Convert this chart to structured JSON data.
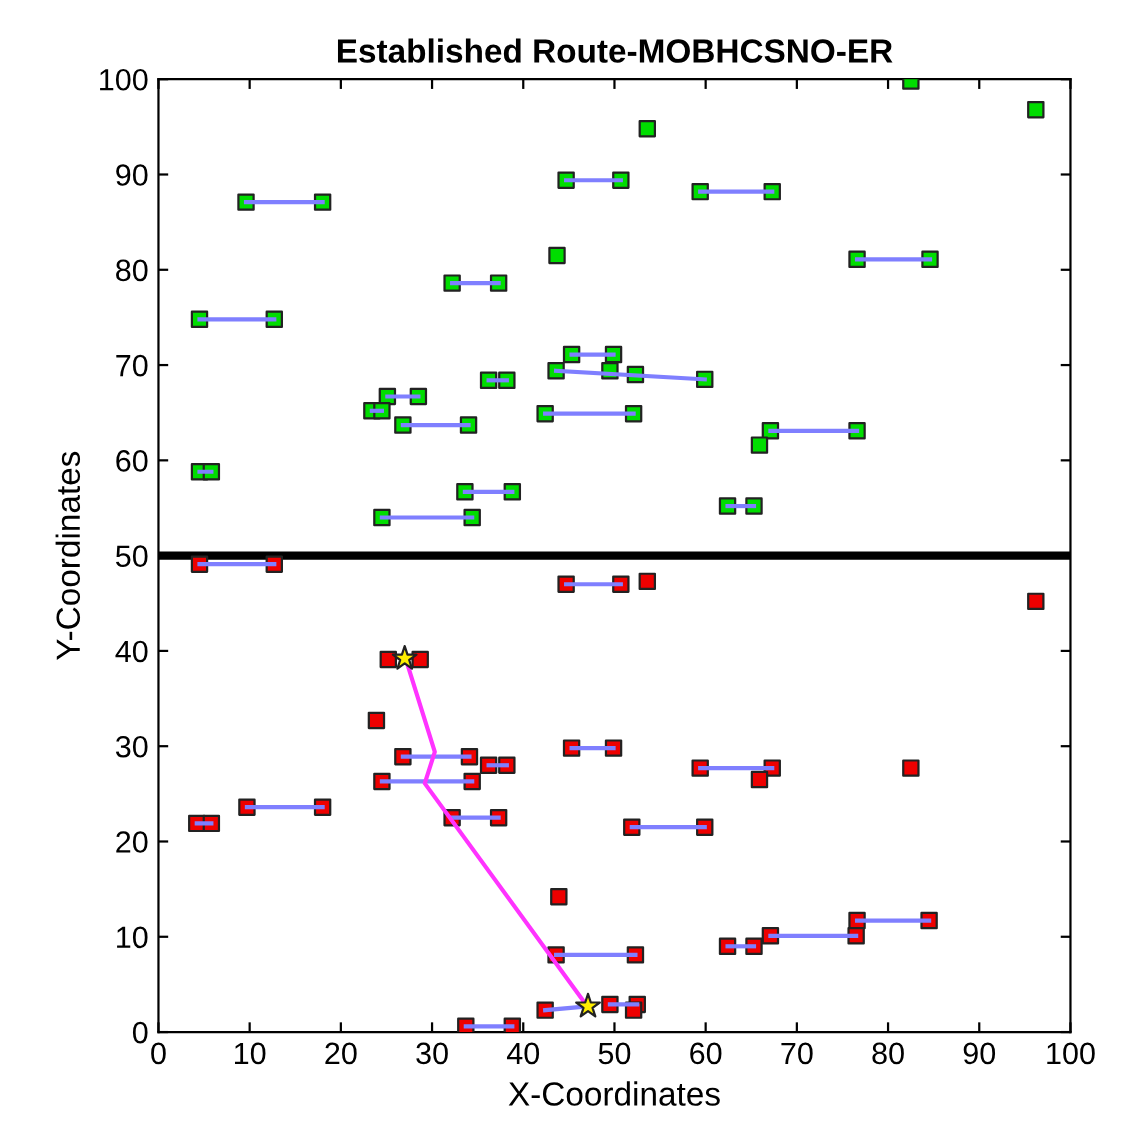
{
  "chart_data": {
    "type": "scatter",
    "title": "Established Route-MOBHCSNO-ER",
    "xlabel": "X-Coordinates",
    "ylabel": "Y-Coordinates",
    "xlim": [
      0,
      100
    ],
    "ylim": [
      0,
      100
    ],
    "xticks": [
      0,
      10,
      20,
      30,
      40,
      50,
      60,
      70,
      80,
      90,
      100
    ],
    "yticks": [
      0,
      10,
      20,
      30,
      40,
      50,
      60,
      70,
      80,
      90,
      100
    ],
    "grid": false,
    "legend": false,
    "ref_lines": [
      {
        "axis": "y",
        "value": 50,
        "color": "#000000",
        "line_style": "solid"
      }
    ],
    "series": [
      {
        "type": "line",
        "color": "#7f7fff",
        "x": [
          4.5,
          12.7
        ],
        "values": [
          74.8,
          74.8
        ]
      },
      {
        "type": "line",
        "color": "#7f7fff",
        "x": [
          9.6,
          18
        ],
        "values": [
          87.1,
          87.1
        ]
      },
      {
        "type": "line",
        "color": "#7f7fff",
        "x": [
          4.5,
          5.8
        ],
        "values": [
          58.8,
          58.8
        ]
      },
      {
        "type": "line",
        "color": "#7f7fff",
        "x": [
          25.1,
          28.5
        ],
        "values": [
          66.7,
          66.7
        ]
      },
      {
        "type": "line",
        "color": "#7f7fff",
        "x": [
          23.4,
          24.5
        ],
        "values": [
          65.2,
          65.2
        ]
      },
      {
        "type": "line",
        "color": "#7f7fff",
        "x": [
          26.8,
          34
        ],
        "values": [
          63.7,
          63.7
        ]
      },
      {
        "type": "line",
        "color": "#7f7fff",
        "x": [
          24.5,
          34.4
        ],
        "values": [
          54,
          54
        ]
      },
      {
        "type": "line",
        "color": "#7f7fff",
        "x": [
          33.6,
          38.8
        ],
        "values": [
          56.7,
          56.7
        ]
      },
      {
        "type": "line",
        "color": "#7f7fff",
        "x": [
          36.2,
          38.2
        ],
        "values": [
          68.4,
          68.4
        ]
      },
      {
        "type": "line",
        "color": "#7f7fff",
        "x": [
          32.2,
          37.3
        ],
        "values": [
          78.6,
          78.6
        ]
      },
      {
        "type": "line",
        "color": "#7f7fff",
        "x": [
          44.7,
          50.7
        ],
        "values": [
          89.4,
          89.4
        ]
      },
      {
        "type": "line",
        "color": "#7f7fff",
        "x": [
          45.3,
          49.9
        ],
        "values": [
          71.1,
          71.1
        ]
      },
      {
        "type": "line",
        "color": "#7f7fff",
        "x": [
          43.6,
          59.9
        ],
        "values": [
          69.4,
          68.5
        ]
      },
      {
        "type": "line",
        "color": "#7f7fff",
        "x": [
          42.4,
          52.1
        ],
        "values": [
          64.9,
          64.9
        ]
      },
      {
        "type": "line",
        "color": "#7f7fff",
        "x": [
          59.4,
          67.3
        ],
        "values": [
          88.2,
          88.2
        ]
      },
      {
        "type": "line",
        "color": "#7f7fff",
        "x": [
          76.6,
          84.6
        ],
        "values": [
          81.1,
          81.1
        ]
      },
      {
        "type": "line",
        "color": "#7f7fff",
        "x": [
          67.1,
          76.6
        ],
        "values": [
          63.1,
          63.1
        ]
      },
      {
        "type": "line",
        "color": "#7f7fff",
        "x": [
          62.4,
          65.3
        ],
        "values": [
          55.2,
          55.2
        ]
      },
      {
        "type": "line",
        "color": "#7f7fff",
        "x": [
          4.5,
          12.7
        ],
        "values": [
          49.1,
          49.1
        ]
      },
      {
        "type": "line",
        "color": "#7f7fff",
        "x": [
          44.7,
          50.7
        ],
        "values": [
          47,
          47
        ]
      },
      {
        "type": "line",
        "color": "#7f7fff",
        "x": [
          26.8,
          34.1
        ],
        "values": [
          28.9,
          28.9
        ]
      },
      {
        "type": "line",
        "color": "#7f7fff",
        "x": [
          36.2,
          38.2
        ],
        "values": [
          28,
          28
        ]
      },
      {
        "type": "line",
        "color": "#7f7fff",
        "x": [
          24.5,
          34.4
        ],
        "values": [
          26.3,
          26.3
        ]
      },
      {
        "type": "line",
        "color": "#7f7fff",
        "x": [
          9.7,
          18
        ],
        "values": [
          23.6,
          23.6
        ]
      },
      {
        "type": "line",
        "color": "#7f7fff",
        "x": [
          4.2,
          5.8
        ],
        "values": [
          21.9,
          21.9
        ]
      },
      {
        "type": "line",
        "color": "#7f7fff",
        "x": [
          32.2,
          37.3
        ],
        "values": [
          22.5,
          22.5
        ]
      },
      {
        "type": "line",
        "color": "#7f7fff",
        "x": [
          45.3,
          49.9
        ],
        "values": [
          29.8,
          29.8
        ]
      },
      {
        "type": "line",
        "color": "#7f7fff",
        "x": [
          43.6,
          52.3
        ],
        "values": [
          8.1,
          8.1
        ]
      },
      {
        "type": "line",
        "color": "#7f7fff",
        "x": [
          42.4,
          47.1
        ],
        "values": [
          2.3,
          2.7
        ]
      },
      {
        "type": "line",
        "color": "#7f7fff",
        "x": [
          49.5,
          52.5
        ],
        "values": [
          2.9,
          2.9
        ]
      },
      {
        "type": "line",
        "color": "#7f7fff",
        "x": [
          33.7,
          38.8
        ],
        "values": [
          0.6,
          0.6
        ]
      },
      {
        "type": "line",
        "color": "#7f7fff",
        "x": [
          59.4,
          67.3
        ],
        "values": [
          27.7,
          27.7
        ]
      },
      {
        "type": "line",
        "color": "#7f7fff",
        "x": [
          51.9,
          59.9
        ],
        "values": [
          21.5,
          21.5
        ]
      },
      {
        "type": "line",
        "color": "#7f7fff",
        "x": [
          76.6,
          84.5
        ],
        "values": [
          11.7,
          11.7
        ]
      },
      {
        "type": "line",
        "color": "#7f7fff",
        "x": [
          67.1,
          76.5
        ],
        "values": [
          10.1,
          10.1
        ]
      },
      {
        "type": "line",
        "color": "#7f7fff",
        "x": [
          62.4,
          65.3
        ],
        "values": [
          9,
          9
        ]
      },
      {
        "color": "#00dd00",
        "marker": "square",
        "x": [
          4.5,
          12.7,
          9.6,
          18,
          4.5,
          5.8,
          25.1,
          28.5,
          23.4,
          24.5,
          26.8,
          34,
          24.5,
          34.4,
          33.6,
          38.8,
          36.2,
          38.2,
          32.2,
          37.3,
          43.7,
          44.7,
          50.7,
          45.3,
          49.9,
          43.6,
          49.5,
          52.3,
          59.9,
          42.4,
          52.1,
          53.6,
          59.4,
          67.3,
          76.6,
          84.6,
          82.5,
          96.2,
          67.1,
          76.6,
          65.9,
          62.4,
          65.3
        ],
        "values": [
          74.8,
          74.8,
          87.1,
          87.1,
          58.8,
          58.8,
          66.7,
          66.7,
          65.2,
          65.2,
          63.7,
          63.7,
          54,
          54,
          56.7,
          56.7,
          68.4,
          68.4,
          78.6,
          78.6,
          81.5,
          89.4,
          89.4,
          71.1,
          71.1,
          69.4,
          69.4,
          69,
          68.5,
          64.9,
          64.9,
          94.8,
          88.2,
          88.2,
          81.1,
          81.1,
          99.8,
          96.8,
          63.1,
          63.1,
          61.6,
          55.2,
          55.2
        ]
      },
      {
        "color": "#ee0000",
        "marker": "square",
        "x": [
          4.5,
          12.7,
          44.7,
          50.7,
          53.6,
          96.2,
          25.2,
          28.7,
          23.9,
          26.8,
          34.1,
          36.2,
          38.2,
          24.5,
          34.4,
          9.7,
          18,
          4.2,
          5.8,
          32.2,
          37.3,
          43.9,
          45.3,
          49.9,
          43.6,
          52.3,
          42.4,
          49.5,
          52.5,
          52.1,
          33.7,
          38.8,
          59.4,
          67.3,
          65.9,
          82.5,
          51.9,
          59.9,
          76.6,
          84.5,
          76.5,
          67.1,
          62.4,
          65.3
        ],
        "values": [
          49.1,
          49.1,
          47,
          47,
          47.3,
          45.2,
          39.1,
          39.1,
          32.7,
          28.9,
          28.9,
          28,
          28,
          26.3,
          26.3,
          23.6,
          23.6,
          21.9,
          21.9,
          22.5,
          22.5,
          14.2,
          29.8,
          29.8,
          8.1,
          8.1,
          2.3,
          2.9,
          2.9,
          2.3,
          0.6,
          0.6,
          27.7,
          27.7,
          26.5,
          27.7,
          21.5,
          21.5,
          11.7,
          11.7,
          10.1,
          10.1,
          9,
          9
        ]
      },
      {
        "type": "line",
        "color": "#ff33ff",
        "x": [
          27,
          30.3,
          29.2,
          46.8
        ],
        "values": [
          39.5,
          29.4,
          26.1,
          3
        ]
      },
      {
        "color": "#ffee00",
        "marker": "star",
        "x": [
          27,
          47.1
        ],
        "values": [
          39.2,
          2.7
        ]
      }
    ]
  }
}
